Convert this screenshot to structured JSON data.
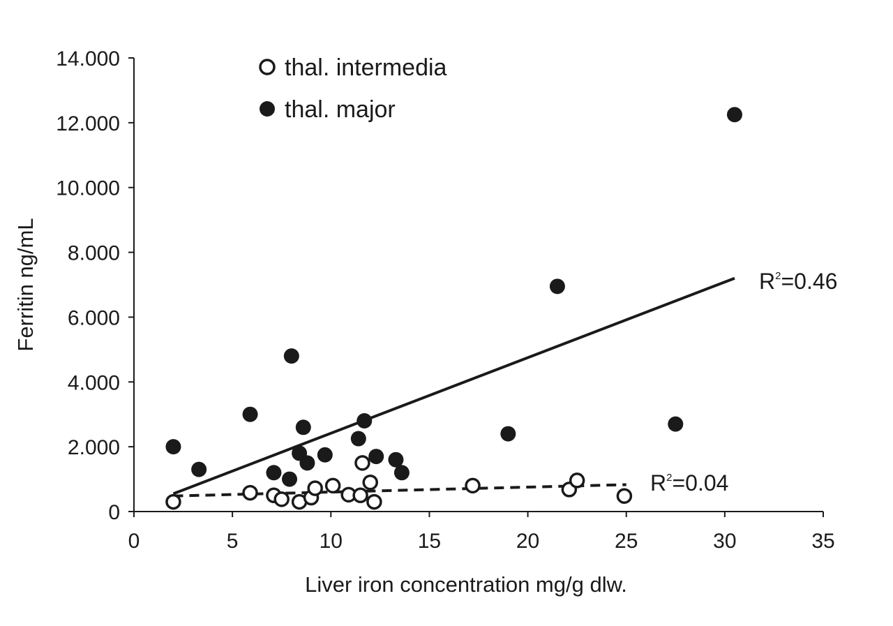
{
  "chart_data": {
    "type": "scatter",
    "title": "",
    "xlabel": "Liver iron concentration mg/g dlw.",
    "ylabel": "Ferritin ng/mL",
    "xlim": [
      0,
      35
    ],
    "ylim": [
      0,
      14000
    ],
    "x_ticks": [
      0,
      5,
      10,
      15,
      20,
      25,
      30,
      35
    ],
    "x_tick_labels": [
      "0",
      "5",
      "10",
      "15",
      "20",
      "25",
      "30",
      "35"
    ],
    "y_ticks": [
      0,
      2000,
      4000,
      6000,
      8000,
      10000,
      12000,
      14000
    ],
    "y_tick_labels": [
      "0",
      "2.000",
      "4.000",
      "6.000",
      "8.000",
      "10.000",
      "12.000",
      "14.000"
    ],
    "grid": false,
    "legend_position": "top-left",
    "series": [
      {
        "name": "thal. intermedia",
        "marker": "open-circle",
        "color": "#1a1a1a",
        "points": [
          [
            2.0,
            300
          ],
          [
            5.9,
            580
          ],
          [
            7.1,
            500
          ],
          [
            7.5,
            380
          ],
          [
            8.4,
            300
          ],
          [
            9.0,
            430
          ],
          [
            9.2,
            720
          ],
          [
            10.1,
            800
          ],
          [
            10.9,
            520
          ],
          [
            11.5,
            500
          ],
          [
            11.6,
            1500
          ],
          [
            12.0,
            900
          ],
          [
            12.2,
            300
          ],
          [
            17.2,
            800
          ],
          [
            22.1,
            680
          ],
          [
            22.5,
            960
          ],
          [
            24.9,
            480
          ]
        ],
        "trendline": {
          "style": "dashed",
          "x": [
            2.0,
            25.0
          ],
          "y": [
            480,
            830
          ],
          "label": "R²=0.04",
          "r2_base": "R",
          "r2_sup": "2",
          "r2_value": "=0.04"
        }
      },
      {
        "name": "thal. major",
        "marker": "filled-circle",
        "color": "#1a1a1a",
        "points": [
          [
            2.0,
            2000
          ],
          [
            3.3,
            1300
          ],
          [
            5.9,
            3000
          ],
          [
            7.1,
            1200
          ],
          [
            7.9,
            1000
          ],
          [
            8.0,
            4800
          ],
          [
            8.4,
            1800
          ],
          [
            8.6,
            2600
          ],
          [
            8.8,
            1500
          ],
          [
            9.7,
            1750
          ],
          [
            11.4,
            2250
          ],
          [
            11.7,
            2800
          ],
          [
            12.3,
            1700
          ],
          [
            13.3,
            1600
          ],
          [
            13.6,
            1200
          ],
          [
            19.0,
            2400
          ],
          [
            21.5,
            6950
          ],
          [
            27.5,
            2700
          ],
          [
            30.5,
            12250
          ]
        ],
        "trendline": {
          "style": "solid",
          "x": [
            2.0,
            30.5
          ],
          "y": [
            550,
            7200
          ],
          "label": "R²=0.46",
          "r2_base": "R",
          "r2_sup": "2",
          "r2_value": "=0.46"
        }
      }
    ]
  }
}
